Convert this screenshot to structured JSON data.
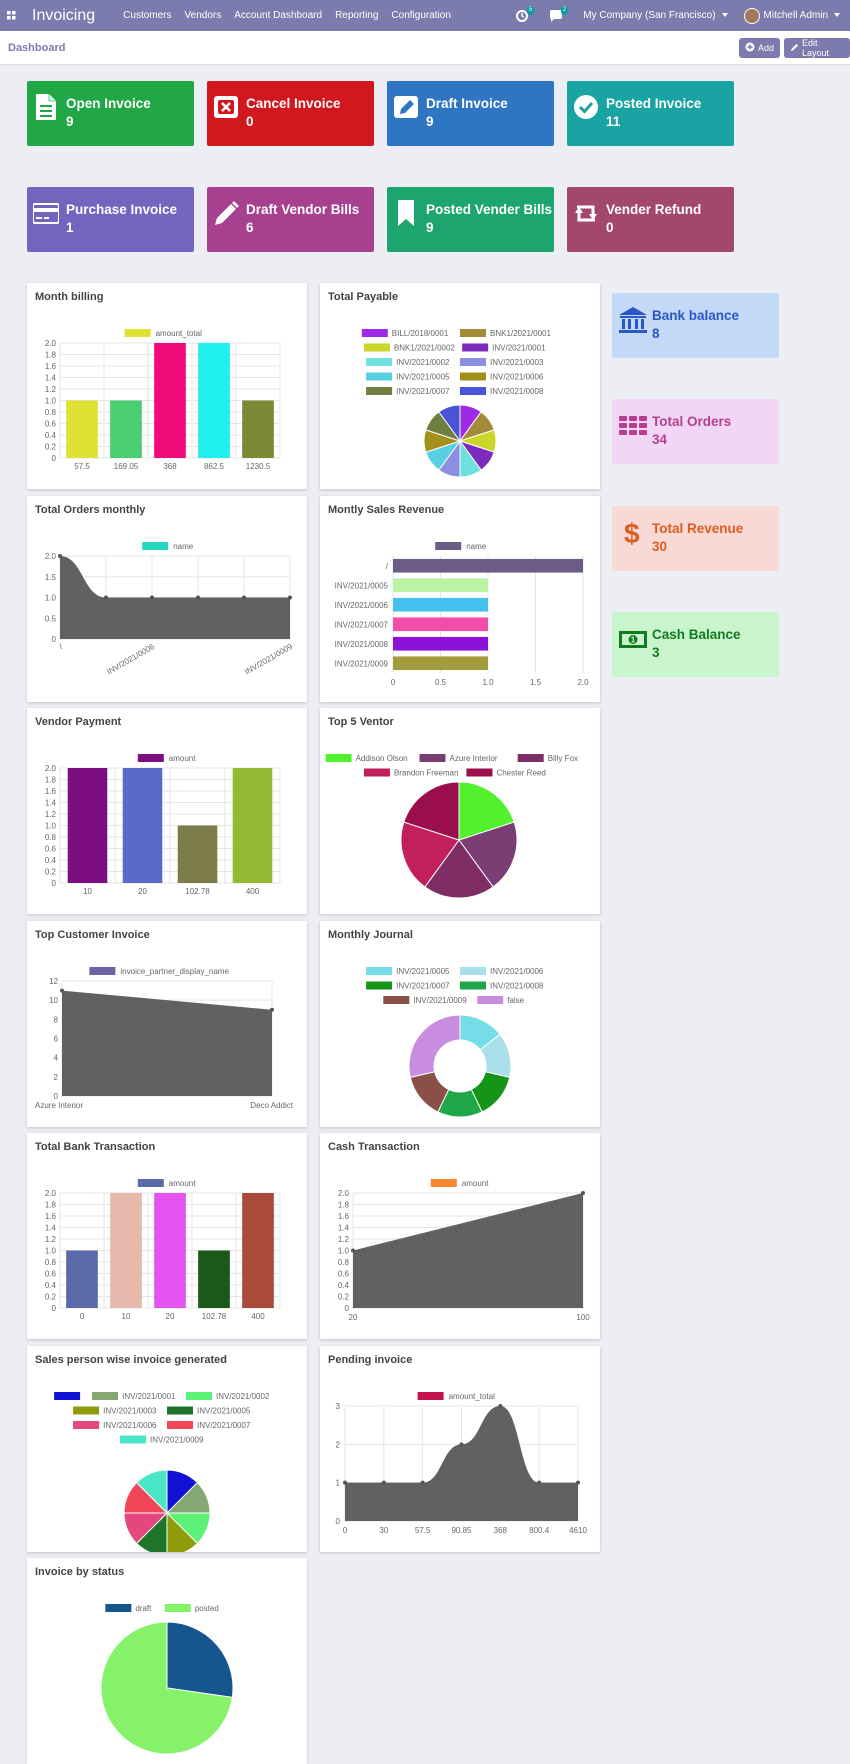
{
  "app": {
    "name": "Invoicing",
    "menu": [
      "Customers",
      "Vendors",
      "Account Dashboard",
      "Reporting",
      "Configuration"
    ],
    "activity_badge": "5",
    "messages_badge": "2",
    "company": "My Company (San Francisco)",
    "user": "Mitchell Admin"
  },
  "control": {
    "breadcrumb": "Dashboard",
    "add_label": "Add",
    "edit_layout_label": "Edit Layout"
  },
  "colors": {
    "navbar": "#7c7bad",
    "background": "#eceef3"
  },
  "tiles": [
    {
      "label": "Open Invoice",
      "value": "9",
      "color": "#21a746",
      "icon": "file-text-icon"
    },
    {
      "label": "Cancel Invoice",
      "value": "0",
      "color": "#d2181f",
      "icon": "close-box-icon"
    },
    {
      "label": "Draft Invoice",
      "value": "9",
      "color": "#2e75c4",
      "icon": "edit-box-icon"
    },
    {
      "label": "Posted Invoice",
      "value": "11",
      "color": "#1aa3a3",
      "icon": "check-circle-icon"
    },
    {
      "label": "Purchase Invoice",
      "value": "1",
      "color": "#7165c0",
      "icon": "credit-card-icon"
    },
    {
      "label": "Draft Vendor Bills",
      "value": "6",
      "color": "#a7418f",
      "icon": "pencil-icon"
    },
    {
      "label": "Posted Vender Bills",
      "value": "9",
      "color": "#1ca56e",
      "icon": "bookmark-icon"
    },
    {
      "label": "Vender Refund",
      "value": "0",
      "color": "#a3486c",
      "icon": "retweet-icon"
    }
  ],
  "side_boxes": [
    {
      "label": "Bank balance",
      "value": "8",
      "bg": "#c3d9f7",
      "fg": "#2b56c6",
      "icon": "bank-icon"
    },
    {
      "label": "Total Orders",
      "value": "34",
      "bg": "#f1d6f5",
      "fg": "#b6408f",
      "icon": "grid-icon"
    },
    {
      "label": "Total Revenue",
      "value": "30",
      "bg": "#f9d9d5",
      "fg": "#dd5c1c",
      "icon": "dollar-icon"
    },
    {
      "label": "Cash Balance",
      "value": "3",
      "bg": "#c8f5cc",
      "fg": "#137a21",
      "icon": "money-icon"
    }
  ],
  "cards": {
    "month_billing": "Month billing",
    "total_payable": "Total Payable",
    "total_orders_monthly": "Total Orders monthly",
    "monthly_sales_revenue": "Montly Sales Revenue",
    "vendor_payment": "Vendor Payment",
    "top5_vendor": "Top 5 Ventor",
    "top_customer_invoice": "Top Customer Invoice",
    "monthly_journal": "Monthly Journal",
    "total_bank_transaction": "Total Bank Transaction",
    "cash_transaction": "Cash Transaction",
    "salesperson_invoice": "Sales person wise invoice generated",
    "pending_invoice": "Pending invoice",
    "invoice_by_status": "Invoice by status"
  },
  "chart_data": [
    {
      "id": "month_billing",
      "type": "bar",
      "series_name": "amount_total",
      "categories": [
        "57.5",
        "169.05",
        "368",
        "862.5",
        "1230.5"
      ],
      "values": [
        1,
        1,
        2,
        2,
        1
      ],
      "colors": [
        "#dde235",
        "#49cf71",
        "#ef0c7a",
        "#1ff0ef",
        "#7a8a34"
      ],
      "ylim": [
        0,
        2.0
      ],
      "yticks": [
        "0",
        "0.2",
        "0.4",
        "0.6",
        "0.8",
        "1.0",
        "1.2",
        "1.4",
        "1.6",
        "1.8",
        "2.0"
      ],
      "legend_color": "#dde235"
    },
    {
      "id": "total_payable",
      "type": "pie",
      "labels": [
        "BILL/2018/0001",
        "BNK1/2021/0001",
        "BNK1/2021/0002",
        "INV/2021/0001",
        "INV/2021/0002",
        "INV/2021/0003",
        "INV/2021/0005",
        "INV/2021/0006",
        "INV/2021/0007",
        "INV/2021/0008"
      ],
      "values": [
        1,
        1,
        1,
        1,
        1,
        1,
        1,
        1,
        1,
        1
      ],
      "colors": [
        "#9f2ae6",
        "#a38b3a",
        "#ccd52a",
        "#7b2cbf",
        "#6ee0e0",
        "#8a8fdf",
        "#58cfe3",
        "#a48f18",
        "#6e7f3f",
        "#4a55d6"
      ]
    },
    {
      "id": "total_orders_monthly",
      "type": "area",
      "series_name": "name",
      "categories": [
        "/",
        "",
        "INV/2021/0006",
        "",
        "",
        "INV/2021/0009"
      ],
      "values": [
        2,
        1,
        1,
        1,
        1,
        1
      ],
      "ylim": [
        0,
        2.0
      ],
      "yticks": [
        "0",
        "0.5",
        "1.0",
        "1.5",
        "2.0"
      ],
      "legend_color": "#26d6c0"
    },
    {
      "id": "monthly_sales_revenue",
      "type": "hbar",
      "series_name": "name",
      "categories": [
        "/",
        "INV/2021/0005",
        "INV/2021/0006",
        "INV/2021/0007",
        "INV/2021/0008",
        "INV/2021/0009"
      ],
      "values": [
        2,
        1,
        1,
        1,
        1,
        1
      ],
      "colors": [
        "#6b5d87",
        "#b9f3a3",
        "#45c1ef",
        "#f24da8",
        "#8c12d8",
        "#a29d3c"
      ],
      "xlim": [
        0,
        2.0
      ],
      "xticks": [
        "0",
        "0.5",
        "1.0",
        "1.5",
        "2.0"
      ],
      "legend_color": "#6b5d87"
    },
    {
      "id": "vendor_payment",
      "type": "bar",
      "series_name": "amount",
      "categories": [
        "10",
        "20",
        "102.78",
        "400"
      ],
      "values": [
        2,
        2,
        1,
        2
      ],
      "colors": [
        "#7c0e82",
        "#5a6ac8",
        "#7c7b4a",
        "#92bb33"
      ],
      "ylim": [
        0,
        2.0
      ],
      "yticks": [
        "0",
        "0.2",
        "0.4",
        "0.6",
        "0.8",
        "1.0",
        "1.2",
        "1.4",
        "1.6",
        "1.8",
        "2.0"
      ],
      "legend_color": "#7c0e82"
    },
    {
      "id": "top5_vendor",
      "type": "pie",
      "labels": [
        "Addison Olson",
        "Azure Interior",
        "Billy Fox",
        "Brandon Freeman",
        "Chester Reed"
      ],
      "values": [
        1,
        1,
        1,
        1,
        1
      ],
      "colors": [
        "#52f12e",
        "#7a3d74",
        "#7e2d65",
        "#c2205d",
        "#9a0e4e"
      ]
    },
    {
      "id": "top_customer_invoice",
      "type": "area",
      "series_name": "invoice_partner_display_name",
      "categories": [
        "Azure Interior",
        "Deco Addict"
      ],
      "values": [
        11,
        9
      ],
      "ylim": [
        0,
        12
      ],
      "yticks": [
        "0",
        "2",
        "4",
        "6",
        "8",
        "10",
        "12"
      ],
      "legend_color": "#6b63a6"
    },
    {
      "id": "monthly_journal",
      "type": "doughnut",
      "labels": [
        "INV/2021/0005",
        "INV/2021/0006",
        "INV/2021/0007",
        "INV/2021/0008",
        "INV/2021/0009",
        "false"
      ],
      "values": [
        1,
        1,
        1,
        1,
        1,
        2
      ],
      "colors": [
        "#74dde8",
        "#a8dfea",
        "#169418",
        "#20a74a",
        "#8a5048",
        "#c98de0"
      ]
    },
    {
      "id": "total_bank_transaction",
      "type": "bar",
      "series_name": "amount",
      "categories": [
        "0",
        "10",
        "20",
        "102.78",
        "400"
      ],
      "values": [
        1,
        2,
        2,
        1,
        2
      ],
      "colors": [
        "#5a69a8",
        "#e6b9ad",
        "#e653f3",
        "#1b5919",
        "#aa4a3b"
      ],
      "ylim": [
        0,
        2.0
      ],
      "yticks": [
        "0",
        "0.2",
        "0.4",
        "0.6",
        "0.8",
        "1.0",
        "1.2",
        "1.4",
        "1.6",
        "1.8",
        "2.0"
      ],
      "legend_color": "#5a69a8"
    },
    {
      "id": "cash_transaction",
      "type": "area",
      "series_name": "amount",
      "categories": [
        "20",
        "100"
      ],
      "values": [
        1,
        2
      ],
      "ylim": [
        0,
        2.0
      ],
      "yticks": [
        "0",
        "0.2",
        "0.4",
        "0.6",
        "0.8",
        "1.0",
        "1.2",
        "1.4",
        "1.6",
        "1.8",
        "2.0"
      ],
      "legend_color": "#f98632"
    },
    {
      "id": "salesperson_invoice",
      "type": "pie",
      "labels": [
        "",
        "INV/2021/0001",
        "INV/2021/0002",
        "INV/2021/0003",
        "INV/2021/0005",
        "INV/2021/0006",
        "INV/2021/0007",
        "INV/2021/0009"
      ],
      "values": [
        1,
        1,
        1,
        1,
        1,
        1,
        1,
        1
      ],
      "colors": [
        "#1212d6",
        "#84a873",
        "#5cf277",
        "#8f9d0c",
        "#1e7428",
        "#e2477e",
        "#f24659",
        "#4ae5c5"
      ]
    },
    {
      "id": "pending_invoice",
      "type": "area",
      "series_name": "amount_total",
      "categories": [
        "0",
        "30",
        "57.5",
        "90.85",
        "368",
        "800.4",
        "4610"
      ],
      "values": [
        1,
        1,
        1,
        2,
        3,
        1,
        1
      ],
      "ylim": [
        0,
        3
      ],
      "yticks": [
        "0",
        "1",
        "2",
        "3"
      ],
      "legend_color": "#c5134f"
    },
    {
      "id": "invoice_by_status",
      "type": "pie",
      "labels": [
        "draft",
        "posted"
      ],
      "values": [
        3,
        8
      ],
      "colors": [
        "#17558f",
        "#86f26a"
      ]
    }
  ]
}
